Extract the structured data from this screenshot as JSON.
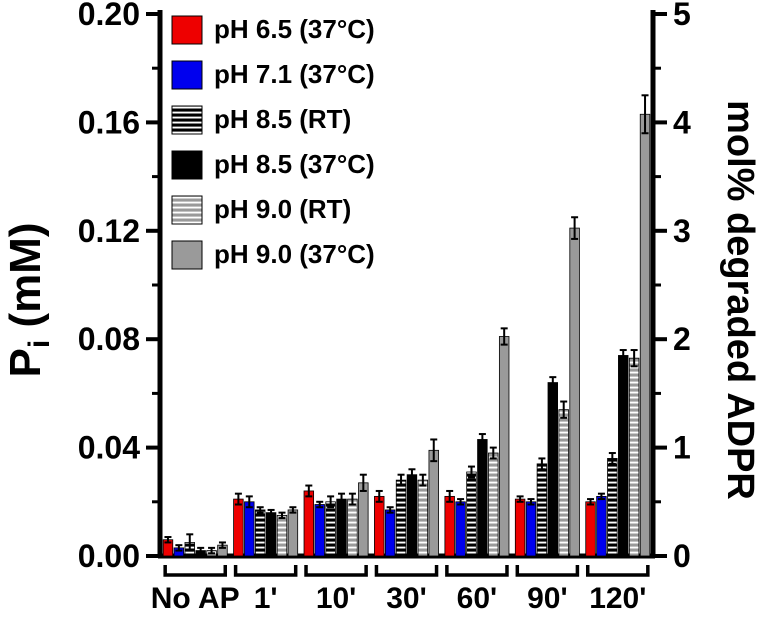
{
  "figure_title": "",
  "left_axis": {
    "label_parts": [
      {
        "t": "P",
        "sub": false
      },
      {
        "t": "i",
        "sub": true
      },
      {
        "t": " (mM)",
        "sub": false
      }
    ],
    "tick_values": [
      0.0,
      0.04,
      0.08,
      0.12,
      0.16,
      0.2
    ],
    "tick_labels": [
      "0.00",
      "0.04",
      "0.08",
      "0.12",
      "0.16",
      "0.20"
    ],
    "minor_tick_values": [
      0.02,
      0.06,
      0.1,
      0.14,
      0.18
    ],
    "min": 0,
    "max": 0.2
  },
  "right_axis": {
    "label": "mol% degraded ADPR",
    "tick_values": [
      0,
      1,
      2,
      3,
      4,
      5
    ],
    "tick_labels": [
      "0",
      "1",
      "2",
      "3",
      "4",
      "5"
    ],
    "minor_tick_values": [
      0.5,
      1.5,
      2.5,
      3.5,
      4.5
    ],
    "min": 0,
    "max": 5
  },
  "chart_data": {
    "type": "bar",
    "title": "",
    "categories": [
      "No AP",
      "1'",
      "10'",
      "30'",
      "60'",
      "90'",
      "120'"
    ],
    "ylabel_left": "Pi (mM)",
    "ylim_left": [
      0,
      0.2
    ],
    "ylabel_right": "mol% degraded ADPR",
    "ylim_right": [
      0,
      5
    ],
    "legend_position": "top-left",
    "grid": false,
    "series": [
      {
        "name": "pH 6.5 (37°C)",
        "color": "#ee0000",
        "pattern": "solid",
        "values": [
          0.006,
          0.021,
          0.024,
          0.022,
          0.022,
          0.021,
          0.02
        ],
        "errors": [
          0.001,
          0.002,
          0.002,
          0.002,
          0.002,
          0.001,
          0.001
        ]
      },
      {
        "name": "pH 7.1 (37°C)",
        "color": "#0000ee",
        "pattern": "solid",
        "values": [
          0.003,
          0.02,
          0.019,
          0.017,
          0.02,
          0.02,
          0.022
        ],
        "errors": [
          0.001,
          0.002,
          0.001,
          0.001,
          0.001,
          0.001,
          0.001
        ]
      },
      {
        "name": "pH 8.5 (RT)",
        "color": "#000000",
        "pattern": "hlines",
        "values": [
          0.005,
          0.017,
          0.02,
          0.028,
          0.031,
          0.034,
          0.036
        ],
        "errors": [
          0.003,
          0.001,
          0.002,
          0.002,
          0.002,
          0.002,
          0.002
        ]
      },
      {
        "name": "pH 8.5 (37°C)",
        "color": "#000000",
        "pattern": "solid",
        "values": [
          0.002,
          0.016,
          0.021,
          0.03,
          0.043,
          0.064,
          0.074
        ],
        "errors": [
          0.001,
          0.001,
          0.002,
          0.002,
          0.002,
          0.002,
          0.002
        ]
      },
      {
        "name": "pH 9.0 (RT)",
        "color": "#9a9a9a",
        "pattern": "hlines",
        "values": [
          0.002,
          0.015,
          0.021,
          0.028,
          0.038,
          0.054,
          0.073
        ],
        "errors": [
          0.001,
          0.001,
          0.002,
          0.002,
          0.002,
          0.003,
          0.003
        ]
      },
      {
        "name": "pH 9.0 (37°C)",
        "color": "#9a9a9a",
        "pattern": "solid",
        "values": [
          0.004,
          0.017,
          0.027,
          0.039,
          0.081,
          0.121,
          0.163
        ],
        "errors": [
          0.001,
          0.001,
          0.003,
          0.004,
          0.003,
          0.004,
          0.007
        ]
      }
    ]
  }
}
